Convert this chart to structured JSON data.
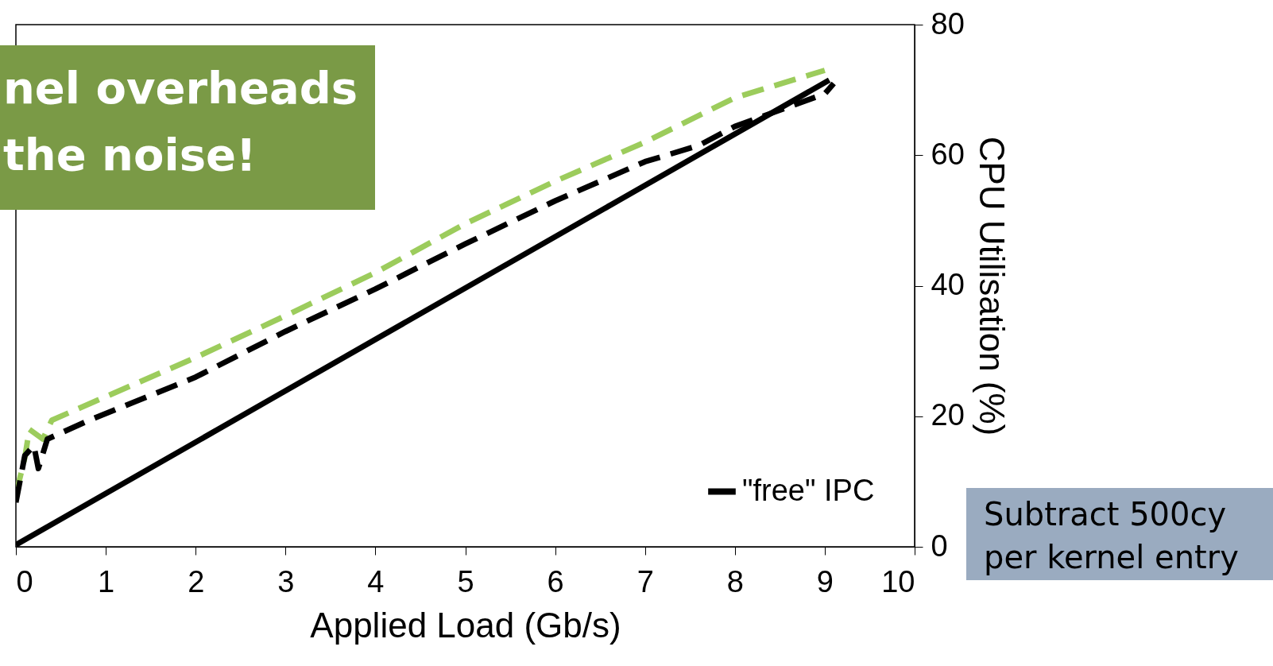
{
  "chart_data": {
    "type": "line",
    "xlabel": "Applied Load (Gb/s)",
    "y2label": "CPU Utilisation (%)",
    "xlim": [
      0,
      10
    ],
    "xticks": [
      0,
      1,
      2,
      3,
      4,
      5,
      6,
      7,
      8,
      9,
      10
    ],
    "y2lim": [
      0,
      80
    ],
    "y2ticks": [
      0,
      20,
      40,
      60,
      80
    ],
    "legend": "bottom right",
    "grid": false,
    "series": [
      {
        "color": "#9ccc5c",
        "line_style": "dashed",
        "axis": "y2",
        "x": [
          0,
          0.1,
          0.15,
          0.3,
          0.4,
          1,
          2,
          3,
          4,
          5,
          6,
          7,
          8,
          9
        ],
        "values": [
          8,
          13.7,
          18,
          16.5,
          19.4,
          23,
          29,
          35.4,
          42,
          49.5,
          56,
          62,
          68.8,
          73
        ]
      },
      {
        "color": "#000000",
        "line_style": "dashed",
        "axis": "y2",
        "x": [
          0,
          0.1,
          0.2,
          0.25,
          0.35,
          0.8,
          2,
          3,
          4,
          5,
          6,
          7,
          7.6,
          8,
          9,
          9.1
        ],
        "values": [
          6.8,
          14,
          15.5,
          12,
          16.5,
          19.3,
          26,
          33,
          39.5,
          46.4,
          53,
          59,
          61.5,
          64.4,
          69.4,
          71
        ]
      },
      {
        "name": "\"free\" IPC",
        "color": "#000000",
        "line_style": "solid",
        "axis": "y2",
        "x": [
          0,
          9.05
        ],
        "values": [
          0.3,
          71.5
        ]
      }
    ],
    "annotations": [
      "nel overheads\nthe noise!",
      "Subtract 500cy\nper kernel entry"
    ]
  }
}
